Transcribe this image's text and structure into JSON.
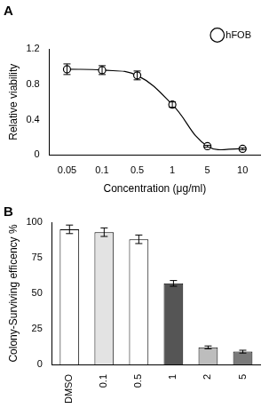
{
  "chart_data": [
    {
      "type": "line",
      "title": "A",
      "categories": [
        "0.05",
        "0.1",
        "0.5",
        "1",
        "5",
        "10"
      ],
      "series": [
        {
          "name": "hFOB",
          "color": "#000000",
          "marker": "circle",
          "values": [
            0.97,
            0.96,
            0.9,
            0.57,
            0.1,
            0.07
          ],
          "errors": [
            0.06,
            0.05,
            0.05,
            0.03,
            0.01,
            0.01
          ]
        }
      ],
      "x_label": "Concentration (μg/ml)",
      "y_label": "Relative viability",
      "ylim": [
        0,
        1.2
      ],
      "yticks": [
        0,
        0.4,
        0.8,
        1.2
      ],
      "grid": false,
      "legend": "top-right"
    },
    {
      "type": "bar",
      "title": "B",
      "categories": [
        "DMSO",
        "0.1",
        "0.5",
        "1",
        "2",
        "5"
      ],
      "values": [
        95,
        93,
        88,
        57,
        12,
        9
      ],
      "errors": [
        3,
        3,
        3,
        2,
        1,
        1
      ],
      "colors": [
        "#ffffff",
        "#e3e3e3",
        "#ffffff",
        "#555555",
        "#bdbdbd",
        "#7a7a7a"
      ],
      "y_label": "Colony-Surviving efficency %",
      "ylim": [
        0,
        100
      ],
      "yticks": [
        0,
        25,
        50,
        75,
        100
      ],
      "grid": false
    }
  ]
}
